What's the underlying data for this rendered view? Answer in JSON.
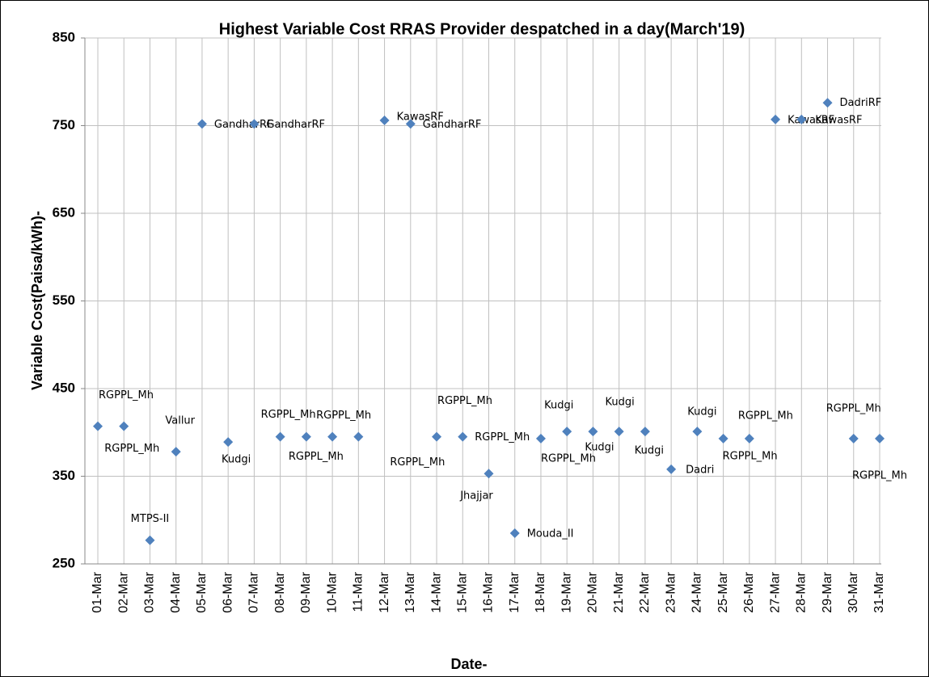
{
  "chart_data": {
    "type": "scatter",
    "title": "Highest Variable Cost RRAS Provider despatched in a day(March'19)",
    "x_label": "Date-",
    "y_label": "Variable Cost(Paisa/kWh)-",
    "categories": [
      "01-Mar",
      "02-Mar",
      "03-Mar",
      "04-Mar",
      "05-Mar",
      "06-Mar",
      "07-Mar",
      "08-Mar",
      "09-Mar",
      "10-Mar",
      "11-Mar",
      "12-Mar",
      "13-Mar",
      "14-Mar",
      "15-Mar",
      "16-Mar",
      "17-Mar",
      "18-Mar",
      "19-Mar",
      "20-Mar",
      "21-Mar",
      "22-Mar",
      "23-Mar",
      "24-Mar",
      "25-Mar",
      "26-Mar",
      "27-Mar",
      "28-Mar",
      "29-Mar",
      "30-Mar",
      "31-Mar"
    ],
    "values": [
      407,
      407,
      277,
      378,
      752,
      389,
      752,
      395,
      395,
      395,
      395,
      756,
      752,
      395,
      395,
      353,
      285,
      393,
      401,
      401,
      401,
      401,
      358,
      401,
      393,
      393,
      757,
      757,
      776,
      393,
      393
    ],
    "point_labels": [
      "RGPPL_Mh",
      "RGPPL_Mh",
      "MTPS-II",
      "Vallur",
      "GandharRF",
      "Kudgi",
      "GandharRF",
      "RGPPL_Mh",
      "RGPPL_Mh",
      "RGPPL_Mh",
      "RGPPL_Mh",
      "KawasRF",
      "GandharRF",
      "RGPPL_Mh",
      "RGPPL_Mh",
      "Jhajjar",
      "Mouda_II",
      "RGPPL_Mh",
      "Kudgi",
      "Kudgi",
      "Kudgi",
      "Kudgi",
      "Dadri",
      "Kudgi",
      "RGPPL_Mh",
      "RGPPL_Mh",
      "KawasRF",
      "KawasRF",
      "DadriRF",
      "RGPPL_Mh",
      "RGPPL_Mh"
    ],
    "color": "#4f81bd",
    "ylim": [
      250,
      850
    ],
    "yticks": [
      250,
      350,
      450,
      550,
      650,
      750,
      850
    ],
    "grid": true
  }
}
